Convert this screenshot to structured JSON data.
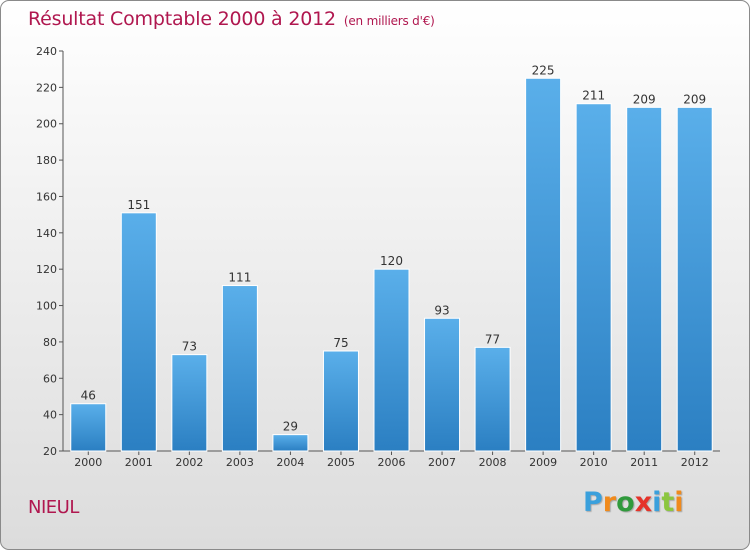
{
  "chart_data": {
    "type": "bar",
    "title": "Résultat Comptable 2000 à 2012",
    "subtitle": "(en milliers d'€)",
    "categories": [
      "2000",
      "2001",
      "2002",
      "2003",
      "2004",
      "2005",
      "2006",
      "2007",
      "2008",
      "2009",
      "2010",
      "2011",
      "2012"
    ],
    "values": [
      46,
      151,
      73,
      111,
      29,
      75,
      120,
      93,
      77,
      225,
      211,
      209,
      209
    ],
    "ylim": [
      20,
      240
    ],
    "yticks": [
      20,
      40,
      60,
      80,
      100,
      120,
      140,
      160,
      180,
      200,
      220,
      240
    ],
    "xlabel": "",
    "ylabel": "",
    "grid": false,
    "bar_color_top": "#5aafea",
    "bar_color_bottom": "#2b7fc2"
  },
  "commune": "NIEUL",
  "brand": {
    "letters": [
      "P",
      "r",
      "o",
      "x",
      "i",
      "t",
      "i"
    ],
    "colors": [
      "#3aa0dc",
      "#f08a1c",
      "#2f9a3c",
      "#e5332a",
      "#3aa0dc",
      "#8cc63f",
      "#f08a1c"
    ]
  },
  "colors": {
    "title": "#b0174f",
    "axis": "#555555"
  }
}
